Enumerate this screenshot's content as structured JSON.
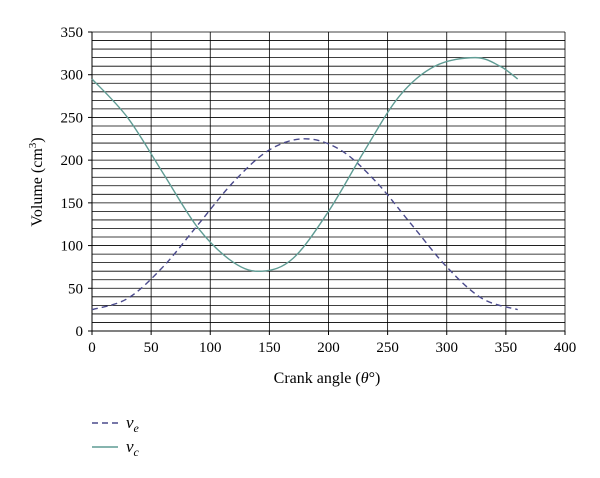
{
  "chart_data": {
    "type": "line",
    "title": "",
    "xlabel_prefix": "Crank angle (",
    "xlabel_var": "θ",
    "xlabel_suffix": "°)",
    "ylabel_prefix": "Volume (cm",
    "ylabel_sup": "3",
    "ylabel_suffix": ")",
    "xlim": [
      0,
      400
    ],
    "ylim": [
      0,
      350
    ],
    "x_ticks": [
      0,
      50,
      100,
      150,
      200,
      250,
      300,
      350,
      400
    ],
    "y_ticks": [
      0,
      50,
      100,
      150,
      200,
      250,
      300,
      350
    ],
    "grid": true,
    "legend_position": "bottom-left",
    "series": [
      {
        "name": "v",
        "subscript": "e",
        "style": "dashed",
        "color": "#4a4a8c",
        "x": [
          0,
          30,
          60,
          90,
          120,
          150,
          180,
          210,
          240,
          270,
          300,
          330,
          360
        ],
        "y": [
          25,
          38,
          75,
          125,
          175,
          212,
          225,
          212,
          175,
          125,
          75,
          38,
          25
        ]
      },
      {
        "name": "v",
        "subscript": "c",
        "style": "solid",
        "color": "#5f9c94",
        "x": [
          0,
          30,
          60,
          90,
          120,
          144,
          170,
          200,
          230,
          260,
          290,
          324,
          345,
          360
        ],
        "y": [
          295,
          250,
          185,
          120,
          80,
          70,
          85,
          140,
          210,
          275,
          310,
          320,
          310,
          295
        ]
      }
    ]
  }
}
